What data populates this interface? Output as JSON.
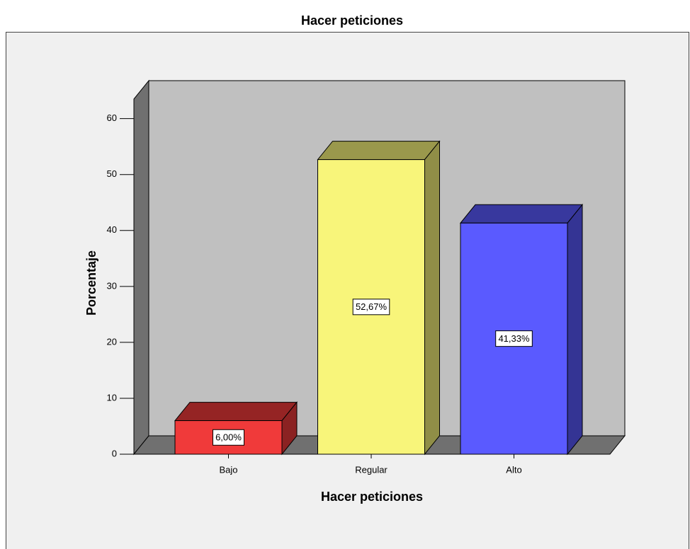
{
  "chart_data": {
    "type": "bar3d",
    "title": "Hacer peticiones",
    "x_label": "Hacer peticiones",
    "y_label": "Porcentaje",
    "categories": [
      "Bajo",
      "Regular",
      "Alto"
    ],
    "values": [
      6,
      52.67,
      41.33
    ],
    "value_labels": [
      "6,00%",
      "52,67%",
      "41,33%"
    ],
    "colors": [
      "#f03a3a",
      "#f8f57a",
      "#5a5aff"
    ],
    "ylim": [
      0,
      63.5
    ],
    "yticks": [
      0,
      10,
      20,
      30,
      40,
      50,
      60
    ]
  }
}
